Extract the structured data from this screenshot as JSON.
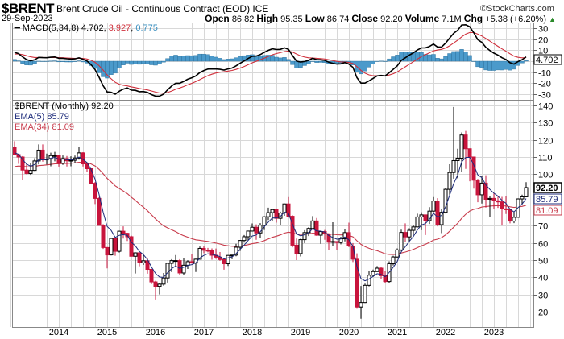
{
  "header": {
    "symbol": "$BRENT",
    "title": "Brent Crude Oil - Continuous Contract (EOD) ICE",
    "copyright": "©StockCharts.com",
    "date": "29-Sep-2023",
    "open_label": "Open",
    "open": "86.82",
    "high_label": "High",
    "high": "95.35",
    "low_label": "Low",
    "low": "86.74",
    "close_label": "Close",
    "close": "92.20",
    "volume_label": "Volume",
    "volume": "7.1M",
    "chg_label": "Chg",
    "chg": "+5.38 (+6.20%)",
    "chg_icon": "up-triangle-icon"
  },
  "macd_legend": {
    "label": "MACD(5,34,8)",
    "macd": "4.702",
    "signal": "3.927",
    "hist": "0.775"
  },
  "price_legend": {
    "label": "$BRENT (Monthly) 92.20",
    "ema5": "EMA(5) 85.79",
    "ema34": "EMA(34) 81.09"
  },
  "value_tags": {
    "close": "92.20",
    "ema5": "85.79",
    "ema34": "81.09",
    "macd": "4.702"
  },
  "colors": {
    "down": "#c8143c",
    "up_edge": "#000000",
    "ema5": "#1c2a7a",
    "ema34": "#c83c4c",
    "macd": "#000000",
    "signal": "#d0303c",
    "hist": "#4b9acb",
    "grid": "#d8d8d8"
  },
  "chart_data": {
    "type": "candlestick",
    "title": "$BRENT Brent Crude Oil - Continuous Contract (EOD) ICE, Monthly",
    "start": "2013-02",
    "first_open": 115.5,
    "x_tick_labels": [
      "2014",
      "2015",
      "2016",
      "2017",
      "2018",
      "2019",
      "2020",
      "2021",
      "2022",
      "2023"
    ],
    "y_ticks": [
      20,
      30,
      40,
      50,
      60,
      70,
      80,
      90,
      100,
      110,
      120,
      130,
      140
    ],
    "ylim": [
      12,
      143
    ],
    "macd_ticks": [
      -30,
      -20,
      -10,
      0,
      10,
      20,
      30
    ],
    "macd_ylim": [
      -35,
      35
    ],
    "indicators": [
      "EMA(5)",
      "EMA(34)",
      "MACD(5,34,8)"
    ],
    "bars": [
      [
        111.4,
        119.2,
        111
      ],
      [
        110.0,
        111.5,
        106
      ],
      [
        102.4,
        110.5,
        96.8
      ],
      [
        100.4,
        106,
        100
      ],
      [
        102.2,
        106.5,
        99.6
      ],
      [
        107.7,
        109.3,
        101.9
      ],
      [
        114.0,
        117.3,
        105.7
      ],
      [
        108.4,
        117.3,
        107.3
      ],
      [
        108.8,
        112,
        105.6
      ],
      [
        110.8,
        112.5,
        104.6
      ],
      [
        110.8,
        113,
        107.5
      ],
      [
        106.4,
        110,
        104.4
      ],
      [
        109.1,
        110.9,
        105.4
      ],
      [
        107.8,
        110.6,
        104.5
      ],
      [
        108.1,
        110.4,
        104.6
      ],
      [
        109.4,
        110.8,
        106.4
      ],
      [
        112.4,
        115.7,
        108.5
      ],
      [
        106.0,
        112.8,
        104.5
      ],
      [
        103.2,
        106.4,
        101.2
      ],
      [
        94.7,
        103.4,
        94.3
      ],
      [
        85.9,
        95.4,
        82.6
      ],
      [
        70.2,
        86.7,
        70.1
      ],
      [
        57.3,
        70.9,
        56.5
      ],
      [
        53.0,
        57.6,
        45.2
      ],
      [
        62.6,
        63,
        52.7
      ],
      [
        55.1,
        62.6,
        52.5
      ],
      [
        66.8,
        67.1,
        54.4
      ],
      [
        65.6,
        69.6,
        62.5
      ],
      [
        63.6,
        65.9,
        61.1
      ],
      [
        52.2,
        64.2,
        52.1
      ],
      [
        54.2,
        54.5,
        42.2
      ],
      [
        48.4,
        54.2,
        46.4
      ],
      [
        49.6,
        53.1,
        47.2
      ],
      [
        44.6,
        50.9,
        42.1
      ],
      [
        37.3,
        44.9,
        36.0
      ],
      [
        34.7,
        38,
        27.1
      ],
      [
        36.0,
        36.8,
        30.0
      ],
      [
        39.6,
        42.5,
        35.1
      ],
      [
        48.1,
        48.5,
        36.9
      ],
      [
        49.7,
        50.5,
        43.0
      ],
      [
        49.7,
        52.9,
        46.6
      ],
      [
        42.5,
        50.5,
        41.5
      ],
      [
        47.0,
        51.2,
        41.5
      ],
      [
        49.1,
        49.9,
        44.8
      ],
      [
        48.3,
        53.7,
        48.0
      ],
      [
        50.5,
        50.8,
        43.1
      ],
      [
        56.8,
        57.9,
        51.3
      ],
      [
        55.7,
        58.4,
        54.0
      ],
      [
        55.6,
        57.1,
        54.5
      ],
      [
        52.8,
        56.8,
        50.2
      ],
      [
        51.7,
        56.7,
        50.7
      ],
      [
        50.3,
        54.7,
        49.6
      ],
      [
        47.9,
        50.7,
        44.4
      ],
      [
        52.7,
        52.9,
        46.6
      ],
      [
        52.9,
        53.0,
        50.5
      ],
      [
        57.5,
        59.5,
        52.2
      ],
      [
        61.4,
        61.7,
        55.3
      ],
      [
        63.6,
        64.6,
        60.2
      ],
      [
        66.9,
        67.1,
        61.6
      ],
      [
        69.1,
        71.3,
        66.6
      ],
      [
        65.8,
        70.8,
        61.8
      ],
      [
        70.3,
        71.5,
        62.9
      ],
      [
        75.2,
        75.5,
        67.5
      ],
      [
        77.6,
        80.5,
        73.3
      ],
      [
        79.4,
        79.8,
        73
      ],
      [
        74.3,
        79.4,
        71.8
      ],
      [
        77.4,
        78.2,
        70.3
      ],
      [
        82.7,
        82.9,
        75.8
      ],
      [
        75.5,
        86.7,
        74.8
      ],
      [
        58.7,
        76.1,
        57.4
      ],
      [
        53.8,
        62.5,
        50.0
      ],
      [
        61.9,
        62.4,
        52.1
      ],
      [
        66.0,
        67.4,
        59.9
      ],
      [
        68.4,
        69.1,
        64.0
      ],
      [
        72.8,
        75.6,
        68.9
      ],
      [
        64.5,
        74.5,
        64.1
      ],
      [
        66.6,
        66.9,
        59.5
      ],
      [
        65.2,
        67.5,
        61.8
      ],
      [
        60.4,
        65.3,
        55.9
      ],
      [
        60.8,
        72.0,
        58.0
      ],
      [
        60.2,
        61.0,
        56.1
      ],
      [
        62.4,
        63.6,
        59.2
      ],
      [
        66.0,
        68.0,
        60.9
      ],
      [
        58.2,
        71.8,
        57.5
      ],
      [
        50.5,
        59.9,
        48.9
      ],
      [
        22.7,
        53.9,
        21.7
      ],
      [
        25.3,
        34.9,
        15.9
      ],
      [
        35.3,
        36.3,
        25.0
      ],
      [
        41.2,
        43.8,
        34.7
      ],
      [
        43.3,
        44.5,
        40.2
      ],
      [
        45.3,
        46.5,
        43.2
      ],
      [
        40.9,
        46.1,
        39.1
      ],
      [
        37.5,
        43.5,
        36.6
      ],
      [
        47.9,
        49.3,
        36.7
      ],
      [
        51.8,
        52.5,
        46.9
      ],
      [
        55.9,
        56.8,
        51.1
      ],
      [
        66.1,
        67.7,
        55.2
      ],
      [
        63.5,
        71.4,
        60.3
      ],
      [
        67.3,
        68.5,
        60.8
      ],
      [
        69.3,
        70.2,
        64.7
      ],
      [
        75.1,
        77.0,
        69.0
      ],
      [
        76.3,
        77.8,
        67.4
      ],
      [
        73.0,
        76.0,
        64.6
      ],
      [
        78.5,
        80.8,
        71.0
      ],
      [
        84.4,
        86.7,
        77.9
      ],
      [
        70.6,
        86.0,
        69.6
      ],
      [
        77.8,
        79.8,
        65.7
      ],
      [
        91.2,
        91.7,
        77.1
      ],
      [
        101.0,
        105.8,
        88.0
      ],
      [
        107.9,
        139.1,
        97.4
      ],
      [
        109.3,
        114.8,
        97.6
      ],
      [
        122.8,
        124.3,
        101.5
      ],
      [
        114.8,
        125.2,
        103.1
      ],
      [
        110.0,
        115.0,
        95.9
      ],
      [
        96.5,
        105.6,
        91.6
      ],
      [
        88.0,
        97.3,
        83.7
      ],
      [
        94.8,
        98.8,
        82.9
      ],
      [
        85.4,
        99.4,
        80.6
      ],
      [
        85.9,
        87.0,
        75.1
      ],
      [
        84.5,
        89.1,
        79.6
      ],
      [
        83.9,
        86.9,
        80.4
      ],
      [
        79.8,
        86.8,
        70.1
      ],
      [
        79.5,
        87.5,
        76.8
      ],
      [
        72.7,
        77.8,
        71.4
      ],
      [
        74.9,
        78.0,
        71.5
      ],
      [
        85.6,
        85.9,
        74.8
      ],
      [
        86.8,
        88.1,
        82.3
      ],
      [
        92.2,
        95.35,
        86.74
      ]
    ],
    "bar_format": "[close, high, low]; open = previous close (last open 86.82)"
  }
}
